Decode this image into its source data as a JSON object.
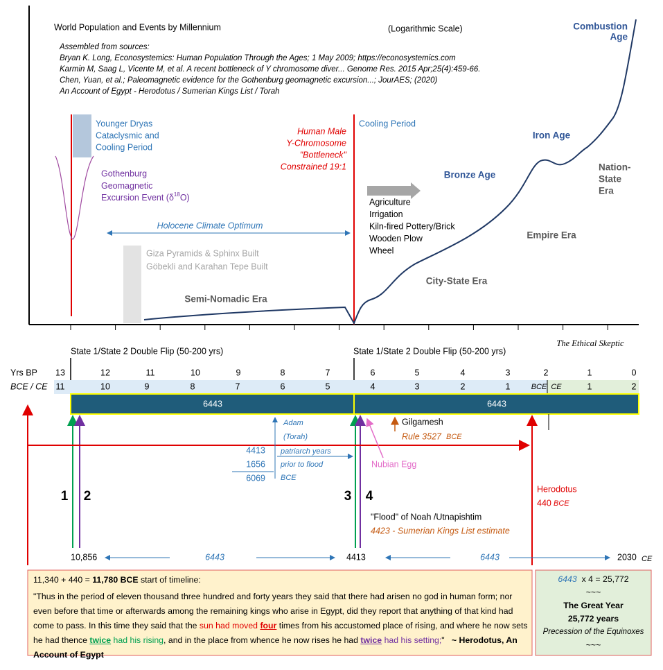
{
  "header": {
    "title": "World Population and Events by Millennium",
    "subtitle": "(Logarithmic Scale)"
  },
  "sources": {
    "heading": "Assembled from sources:",
    "lines": [
      "Bryan K. Long, Econosystemics: Human Population Through the Ages; 1 May 2009; https://econosystemics.com",
      "Karmin M, Saag L, Vicente M, et al. A recent bottleneck of Y chromosome diver... Genome Res. 2015 Apr;25(4):459-66.",
      "Chen, Yuan, et al.; Paleomagnetic evidence for the Gothenburg geomagnetic excursion...; JourAES; (2020)",
      "An Account of Egypt - Herodotus / Sumerian Kings List / Torah"
    ]
  },
  "annotations": {
    "younger_dryas": [
      "Younger Dryas",
      "Cataclysmic and",
      "Cooling Period"
    ],
    "gothenburg": [
      "Gothenburg",
      "Geomagnetic",
      "Excursion Event (δ",
      "18",
      "O)"
    ],
    "holocene": "Holocene Climate Optimum",
    "giza": [
      "Giza Pyramids & Sphinx Built",
      "Göbekli and Karahan Tepe Built"
    ],
    "bottleneck": [
      "Human Male",
      "Y-Chromosome",
      "\"Bottleneck\"",
      "Constrained 19:1"
    ],
    "cooling": "Cooling Period",
    "innovations": [
      "Agriculture",
      "Irrigation",
      "Kiln-fired Pottery/Brick",
      "Wooden Plow",
      "Wheel"
    ],
    "eras": {
      "semi_nomadic": "Semi-Nomadic Era",
      "city_state": "City-State Era",
      "empire": "Empire Era",
      "nation_state": [
        "Nation-",
        "State",
        "Era"
      ]
    },
    "ages": {
      "bronze": "Bronze Age",
      "iron": "Iron Age",
      "combustion": [
        "Combustion",
        "Age"
      ]
    },
    "watermark": "The Ethical Skeptic"
  },
  "timeline": {
    "flips": [
      "State 1/State 2 Double Flip (50-200 yrs)",
      "State 1/State 2 Double Flip (50-200 yrs)"
    ],
    "bp_label": "Yrs BP",
    "bp": [
      "13",
      "12",
      "11",
      "10",
      "9",
      "8",
      "7",
      "6",
      "5",
      "4",
      "3",
      "2",
      "1",
      "0"
    ],
    "era_label": "BCE / CE",
    "bce": [
      "11",
      "10",
      "9",
      "8",
      "7",
      "6",
      "5",
      "4",
      "3",
      "2",
      "1"
    ],
    "bce_tag": "BCE",
    "ce_tag": "CE",
    "ce": [
      "1",
      "2"
    ],
    "bar_labels": [
      "6443",
      "6443"
    ]
  },
  "events": {
    "adam": [
      "Adam",
      "(Torah)"
    ],
    "sum": [
      "4413",
      "1656",
      "6069"
    ],
    "sum_notes": [
      "patriarch years",
      "prior to flood",
      "BCE"
    ],
    "gilgamesh": [
      "Gilgamesh",
      "Rule 3527",
      "BCE"
    ],
    "nubian": "Nubian Egg",
    "markers": [
      "1",
      "2",
      "3",
      "4"
    ],
    "herodotus": [
      "Herodotus",
      "440",
      "BCE"
    ],
    "flood": [
      "\"Flood\" of Noah /Utnapishtim",
      "4423 - Sumerian Kings List estimate"
    ]
  },
  "span": {
    "start": "10,856",
    "first": "6443",
    "middle": "4413",
    "second": "6443",
    "end": "2030",
    "end_tag": "CE"
  },
  "quote_box": {
    "equation": "11,340 + 440 = ",
    "result": "11,780 BCE",
    "suffix": " start of timeline:",
    "parts": [
      "\"Thus in the period of eleven thousand three hundred and forty years they said that there had arisen no god in human form; nor even before that time or afterwards among the remaining kings who arise in Egypt, did they report that anything of that kind had come to pass. In this time they said that the ",
      "sun had moved ",
      "four",
      " times from his accustomed place of rising, and where he now sets he had thence ",
      "twice",
      " had his rising",
      ", and in the place from whence he now rises he had ",
      "twice",
      " had his setting;",
      "\""
    ],
    "attribution": "~ Herodotus, An Account of Egypt"
  },
  "great_year": {
    "base": "6443",
    "product": "x 4 =  25,772",
    "sep1": "~~~",
    "title": "The Great Year",
    "years": "25,772  years",
    "subtitle": "Precession of the Equinoxes",
    "sep2": "~~~"
  }
}
